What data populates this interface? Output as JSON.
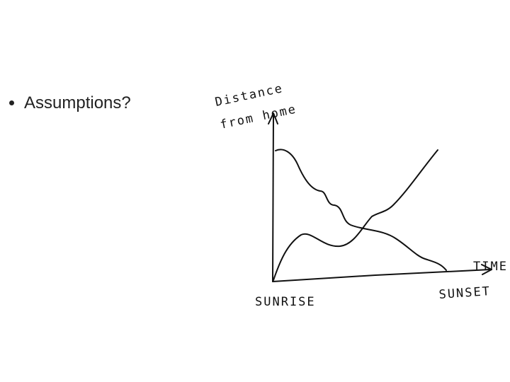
{
  "bullets": [
    "Assumptions?"
  ],
  "sketch": {
    "y_axis_label": [
      "Distance",
      "from home"
    ],
    "x_axis_label": "TIME",
    "x_start_label": "SUNRISE",
    "x_end_label": "SUNSET"
  }
}
